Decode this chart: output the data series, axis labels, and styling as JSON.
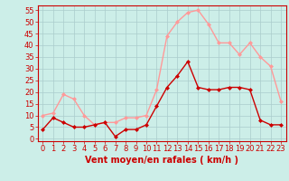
{
  "x": [
    0,
    1,
    2,
    3,
    4,
    5,
    6,
    7,
    8,
    9,
    10,
    11,
    12,
    13,
    14,
    15,
    16,
    17,
    18,
    19,
    20,
    21,
    22,
    23
  ],
  "wind_avg": [
    4,
    9,
    7,
    5,
    5,
    6,
    7,
    1,
    4,
    4,
    6,
    14,
    22,
    27,
    33,
    22,
    21,
    21,
    22,
    22,
    21,
    8,
    6,
    6
  ],
  "wind_gust": [
    10,
    11,
    19,
    17,
    10,
    6,
    7,
    7,
    9,
    9,
    10,
    21,
    44,
    50,
    54,
    55,
    49,
    41,
    41,
    36,
    41,
    35,
    31,
    16
  ],
  "avg_color": "#cc0000",
  "gust_color": "#ff9999",
  "bg_color": "#cceee8",
  "grid_color": "#aacccc",
  "xlabel": "Vent moyen/en rafales ( km/h )",
  "xlabel_color": "#cc0000",
  "xlabel_fontsize": 7,
  "tick_color": "#cc0000",
  "tick_fontsize": 6,
  "ylim": [
    -1,
    57
  ],
  "yticks": [
    0,
    5,
    10,
    15,
    20,
    25,
    30,
    35,
    40,
    45,
    50,
    55
  ],
  "xlim": [
    -0.5,
    23.5
  ],
  "line_width": 1.0,
  "marker": "D",
  "marker_size": 2.0
}
